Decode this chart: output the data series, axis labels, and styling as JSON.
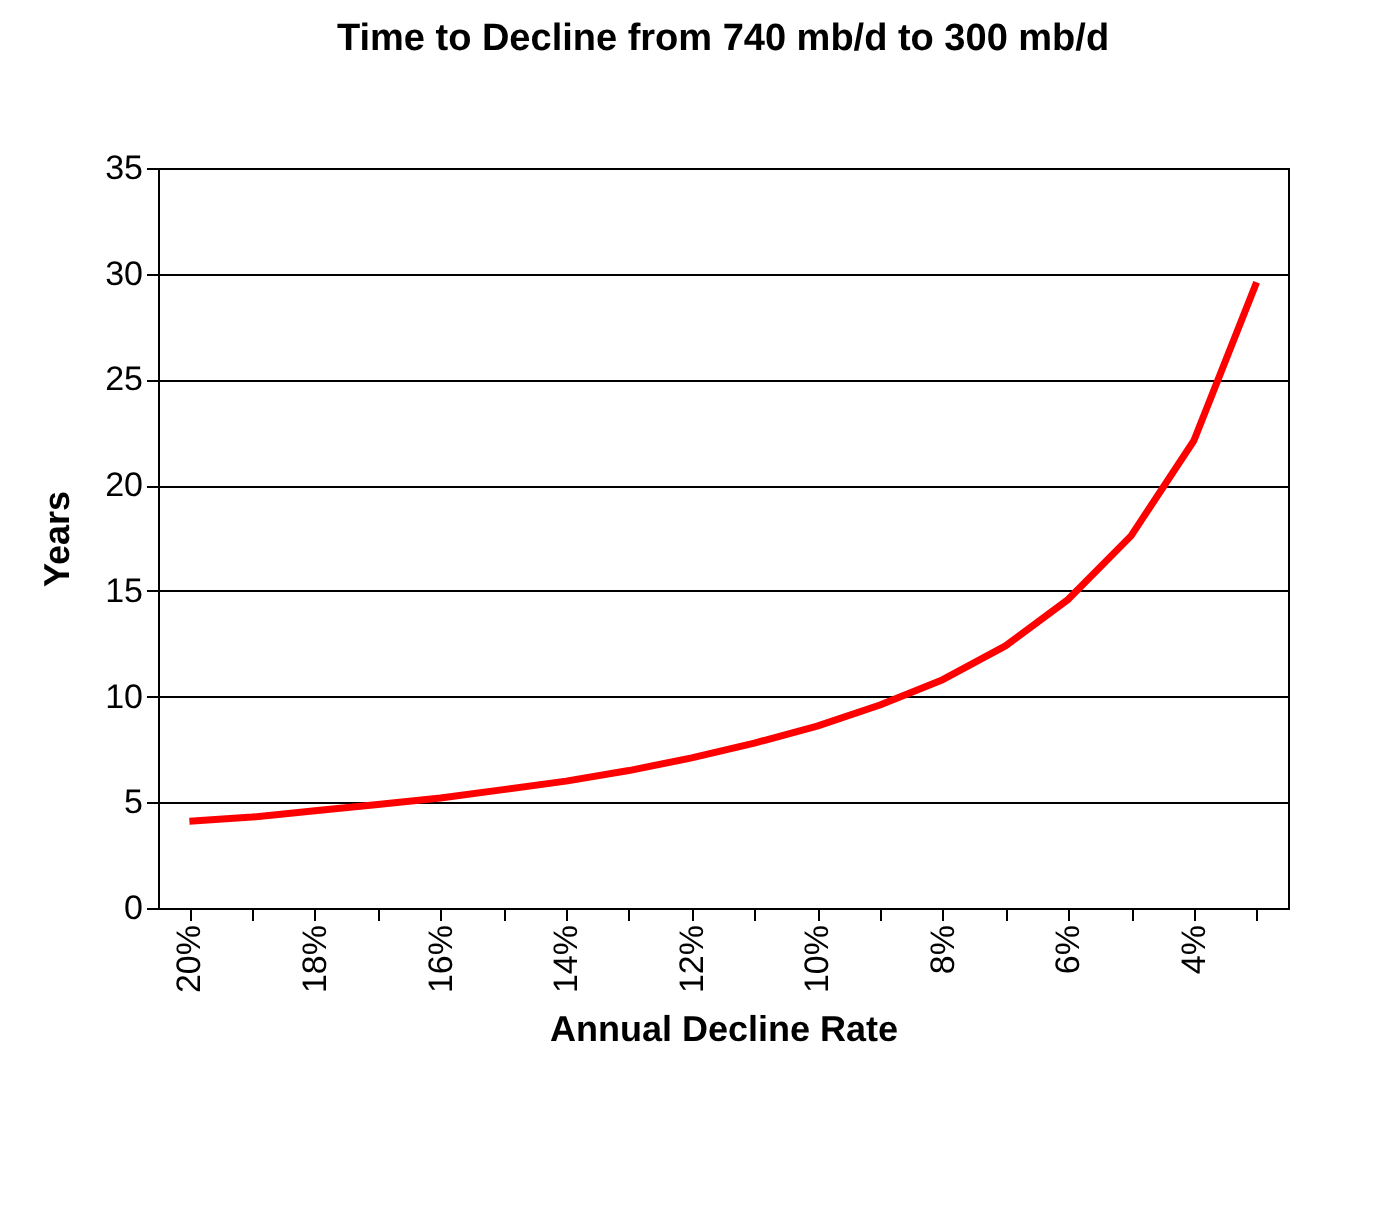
{
  "chart_data": {
    "type": "line",
    "title": "Time to Decline from 740 mb/d to 300 mb/d",
    "xlabel": "Annual Decline Rate",
    "ylabel": "Years",
    "categories": [
      "20%",
      null,
      "18%",
      null,
      "16%",
      null,
      "14%",
      null,
      "12%",
      null,
      "10%",
      null,
      "8%",
      null,
      "6%",
      null,
      "4%",
      null
    ],
    "series": [
      {
        "color": "#ff0000",
        "values": [
          4.1,
          4.3,
          4.6,
          4.9,
          5.2,
          5.6,
          6.0,
          6.5,
          7.1,
          7.8,
          8.6,
          9.6,
          10.8,
          12.4,
          14.6,
          17.6,
          22.1,
          29.6
        ]
      }
    ],
    "ylim": [
      0,
      35
    ],
    "yticks": [
      0,
      5,
      10,
      15,
      20,
      25,
      30,
      35
    ],
    "grid": "y",
    "legend": false,
    "marker": "none",
    "line_style": "solid"
  }
}
